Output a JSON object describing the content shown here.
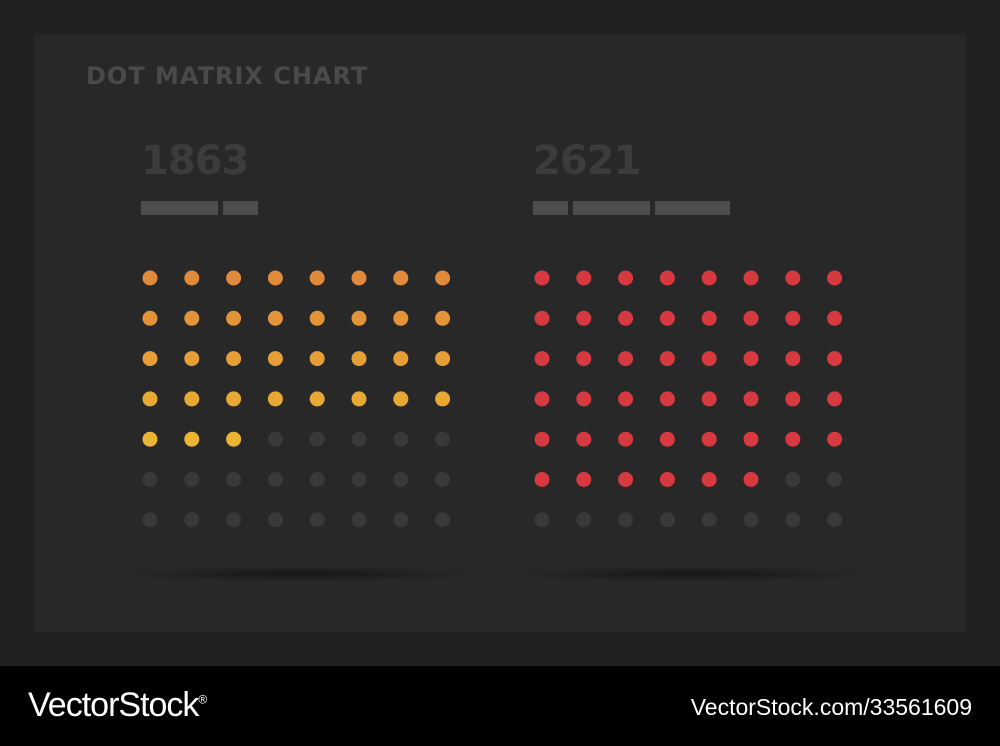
{
  "chart_data": {
    "type": "dot-matrix",
    "title": "DOT MATRIX CHART",
    "grid": {
      "columns": 8,
      "rows": 7
    },
    "panels": [
      {
        "value_label": "1863",
        "filled_dots": 35,
        "total_dots": 56,
        "palette": [
          "#e08a3c",
          "#e39439",
          "#e69e36",
          "#e8a834",
          "#ebb432"
        ],
        "legend_segments": 2
      },
      {
        "value_label": "2621",
        "filled_dots": 46,
        "total_dots": 56,
        "palette": [
          "#d6393f"
        ],
        "legend_segments": 3
      }
    ],
    "empty_dot_color": "#393939"
  },
  "footer": {
    "brand": "VectorStock",
    "registered": "®",
    "url_id": "VectorStock.com/33561609"
  }
}
